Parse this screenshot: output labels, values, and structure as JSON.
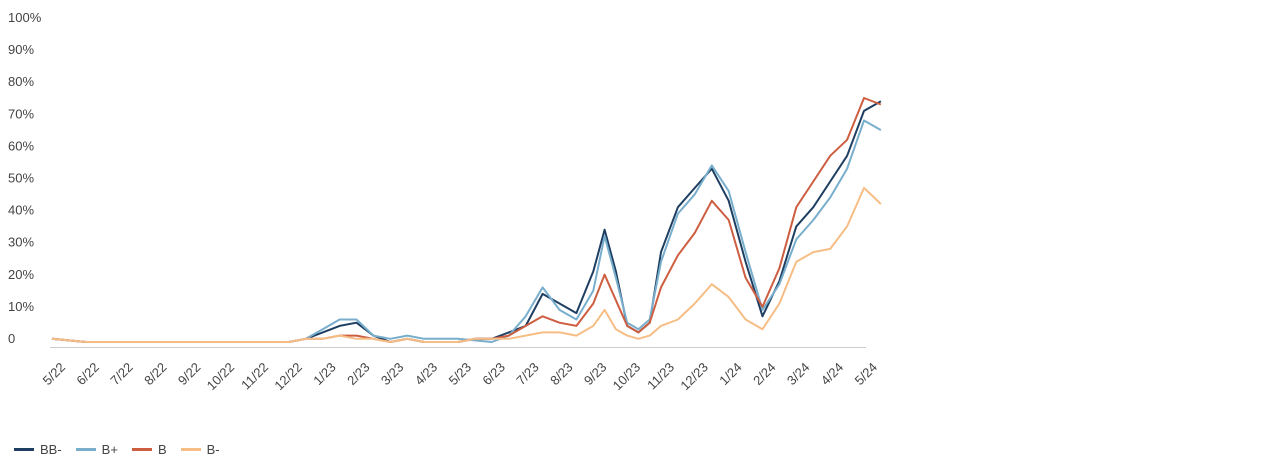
{
  "chart_data": {
    "type": "line",
    "title": "",
    "xlabel": "",
    "ylabel": "",
    "ylim": [
      0,
      100
    ],
    "y_ticks": [
      "0",
      "10%",
      "20%",
      "30%",
      "40%",
      "50%",
      "60%",
      "70%",
      "80%",
      "90%",
      "100%"
    ],
    "x_ticks": [
      "5/22",
      "6/22",
      "7/22",
      "8/22",
      "9/22",
      "10/22",
      "11/22",
      "12/22",
      "1/23",
      "2/23",
      "3/23",
      "4/23",
      "5/23",
      "6/23",
      "7/23",
      "8/23",
      "9/23",
      "10/23",
      "11/23",
      "12/23",
      "1/24",
      "2/24",
      "3/24",
      "4/24",
      "5/24"
    ],
    "grid": false,
    "legend_position": "bottom-left",
    "series": [
      {
        "name": "BB-",
        "color": "#1f3f62",
        "points": [
          [
            "5/22",
            1
          ],
          [
            "6/22",
            0
          ],
          [
            "7/22",
            0
          ],
          [
            "8/22",
            0
          ],
          [
            "9/22",
            0
          ],
          [
            "10/22",
            0
          ],
          [
            "11/22",
            0
          ],
          [
            "12/22",
            0
          ],
          [
            "12/22",
            1
          ],
          [
            "1/23",
            3
          ],
          [
            "1/23",
            5
          ],
          [
            "2/23",
            6
          ],
          [
            "2/23",
            2
          ],
          [
            "3/23",
            0
          ],
          [
            "3/23",
            1
          ],
          [
            "4/23",
            0
          ],
          [
            "5/23",
            0
          ],
          [
            "5/23",
            1
          ],
          [
            "6/23",
            1
          ],
          [
            "6/23",
            3
          ],
          [
            "7/23",
            5
          ],
          [
            "7/23",
            15
          ],
          [
            "8/23",
            12
          ],
          [
            "8/23",
            9
          ],
          [
            "9/23",
            22
          ],
          [
            "9/23",
            35
          ],
          [
            "9/23",
            22
          ],
          [
            "10/23",
            5
          ],
          [
            "10/23",
            3
          ],
          [
            "10/23",
            6
          ],
          [
            "11/23",
            28
          ],
          [
            "11/23",
            42
          ],
          [
            "12/23",
            48
          ],
          [
            "12/23",
            54
          ],
          [
            "1/24",
            44
          ],
          [
            "1/24",
            25
          ],
          [
            "2/24",
            8
          ],
          [
            "2/24",
            19
          ],
          [
            "3/24",
            36
          ],
          [
            "3/24",
            42
          ],
          [
            "4/24",
            50
          ],
          [
            "4/24",
            58
          ],
          [
            "5/24",
            72
          ],
          [
            "5/24",
            75
          ]
        ]
      },
      {
        "name": "B+",
        "color": "#78aecc",
        "points": [
          [
            "5/22",
            1
          ],
          [
            "6/22",
            0
          ],
          [
            "7/22",
            0
          ],
          [
            "8/22",
            0
          ],
          [
            "9/22",
            0
          ],
          [
            "10/22",
            0
          ],
          [
            "11/22",
            0
          ],
          [
            "12/22",
            0
          ],
          [
            "12/22",
            1
          ],
          [
            "1/23",
            4
          ],
          [
            "1/23",
            7
          ],
          [
            "2/23",
            7
          ],
          [
            "2/23",
            2
          ],
          [
            "3/23",
            1
          ],
          [
            "3/23",
            2
          ],
          [
            "4/23",
            1
          ],
          [
            "5/23",
            1
          ],
          [
            "6/23",
            0
          ],
          [
            "6/23",
            2
          ],
          [
            "7/23",
            8
          ],
          [
            "7/23",
            17
          ],
          [
            "8/23",
            10
          ],
          [
            "8/23",
            7
          ],
          [
            "9/23",
            16
          ],
          [
            "9/23",
            33
          ],
          [
            "9/23",
            20
          ],
          [
            "10/23",
            6
          ],
          [
            "10/23",
            4
          ],
          [
            "10/23",
            7
          ],
          [
            "11/23",
            25
          ],
          [
            "11/23",
            40
          ],
          [
            "12/23",
            46
          ],
          [
            "12/23",
            55
          ],
          [
            "1/24",
            47
          ],
          [
            "1/24",
            28
          ],
          [
            "2/24",
            10
          ],
          [
            "2/24",
            18
          ],
          [
            "3/24",
            32
          ],
          [
            "3/24",
            38
          ],
          [
            "4/24",
            45
          ],
          [
            "4/24",
            54
          ],
          [
            "5/24",
            69
          ],
          [
            "5/24",
            66
          ]
        ]
      },
      {
        "name": "B",
        "color": "#cd5e41",
        "points": [
          [
            "5/22",
            1
          ],
          [
            "6/22",
            0
          ],
          [
            "7/22",
            0
          ],
          [
            "8/22",
            0
          ],
          [
            "9/22",
            0
          ],
          [
            "10/22",
            0
          ],
          [
            "11/22",
            0
          ],
          [
            "12/22",
            0
          ],
          [
            "12/22",
            1
          ],
          [
            "1/23",
            1
          ],
          [
            "1/23",
            2
          ],
          [
            "2/23",
            2
          ],
          [
            "2/23",
            1
          ],
          [
            "3/23",
            0
          ],
          [
            "3/23",
            1
          ],
          [
            "4/23",
            0
          ],
          [
            "5/23",
            0
          ],
          [
            "5/23",
            1
          ],
          [
            "6/23",
            1
          ],
          [
            "6/23",
            2
          ],
          [
            "7/23",
            5
          ],
          [
            "7/23",
            8
          ],
          [
            "8/23",
            6
          ],
          [
            "8/23",
            5
          ],
          [
            "9/23",
            12
          ],
          [
            "9/23",
            21
          ],
          [
            "9/23",
            13
          ],
          [
            "10/23",
            5
          ],
          [
            "10/23",
            3
          ],
          [
            "10/23",
            6
          ],
          [
            "11/23",
            17
          ],
          [
            "11/23",
            27
          ],
          [
            "12/23",
            34
          ],
          [
            "12/23",
            44
          ],
          [
            "1/24",
            38
          ],
          [
            "1/24",
            20
          ],
          [
            "2/24",
            11
          ],
          [
            "2/24",
            23
          ],
          [
            "3/24",
            42
          ],
          [
            "3/24",
            50
          ],
          [
            "4/24",
            58
          ],
          [
            "4/24",
            63
          ],
          [
            "5/24",
            76
          ],
          [
            "5/24",
            74
          ]
        ]
      },
      {
        "name": "B-",
        "color": "#f6bd85",
        "points": [
          [
            "5/22",
            1
          ],
          [
            "6/22",
            0
          ],
          [
            "7/22",
            0
          ],
          [
            "8/22",
            0
          ],
          [
            "9/22",
            0
          ],
          [
            "10/22",
            0
          ],
          [
            "11/22",
            0
          ],
          [
            "12/22",
            0
          ],
          [
            "12/22",
            1
          ],
          [
            "1/23",
            1
          ],
          [
            "1/23",
            2
          ],
          [
            "2/23",
            1
          ],
          [
            "2/23",
            1
          ],
          [
            "3/23",
            0
          ],
          [
            "3/23",
            1
          ],
          [
            "4/23",
            0
          ],
          [
            "5/23",
            0
          ],
          [
            "5/23",
            1
          ],
          [
            "6/23",
            1
          ],
          [
            "6/23",
            1
          ],
          [
            "7/23",
            2
          ],
          [
            "7/23",
            3
          ],
          [
            "8/23",
            3
          ],
          [
            "8/23",
            2
          ],
          [
            "9/23",
            5
          ],
          [
            "9/23",
            10
          ],
          [
            "9/23",
            4
          ],
          [
            "10/23",
            2
          ],
          [
            "10/23",
            1
          ],
          [
            "10/23",
            2
          ],
          [
            "11/23",
            5
          ],
          [
            "11/23",
            7
          ],
          [
            "12/23",
            12
          ],
          [
            "12/23",
            18
          ],
          [
            "1/24",
            14
          ],
          [
            "1/24",
            7
          ],
          [
            "2/24",
            4
          ],
          [
            "2/24",
            12
          ],
          [
            "3/24",
            25
          ],
          [
            "3/24",
            28
          ],
          [
            "4/24",
            29
          ],
          [
            "4/24",
            36
          ],
          [
            "5/24",
            48
          ],
          [
            "5/24",
            43
          ]
        ]
      }
    ]
  }
}
